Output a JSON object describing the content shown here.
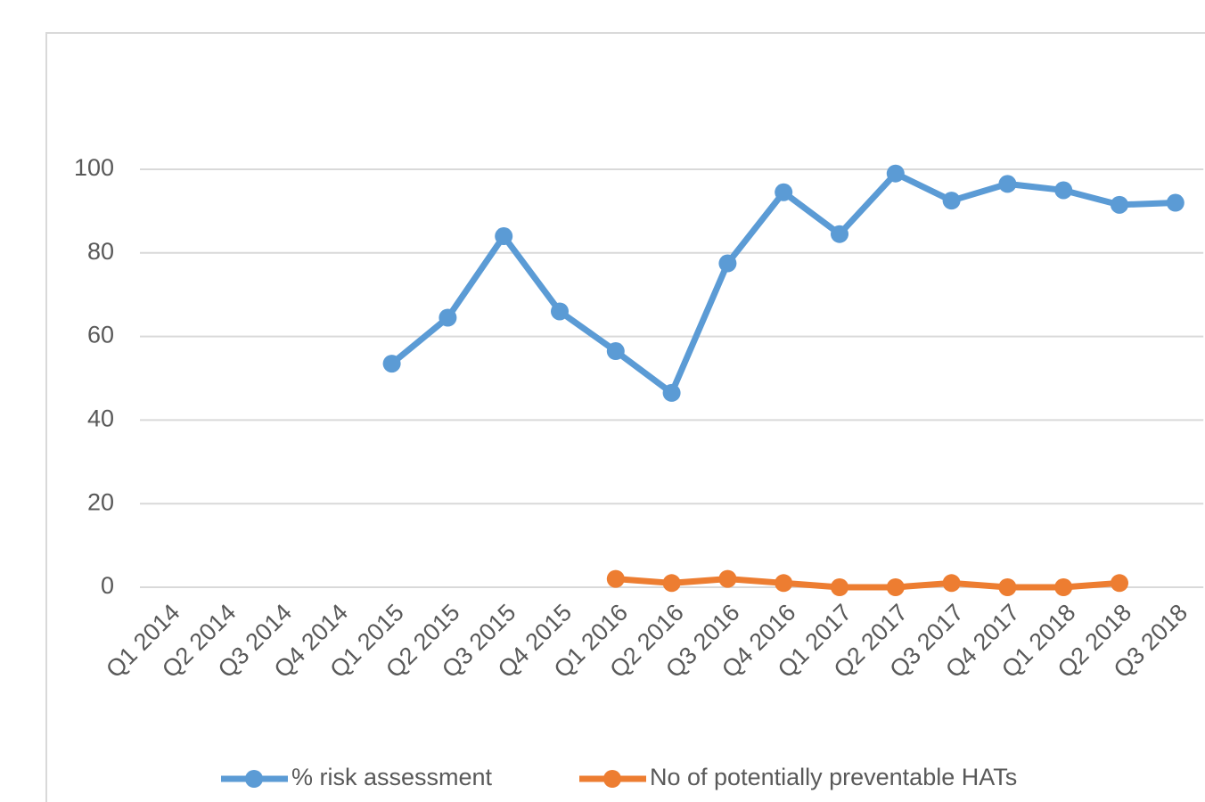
{
  "chart_data": {
    "type": "line",
    "categories": [
      "Q1 2014",
      "Q2 2014",
      "Q3 2014",
      "Q4 2014",
      "Q1 2015",
      "Q2 2015",
      "Q3 2015",
      "Q4 2015",
      "Q1 2016",
      "Q2 2016",
      "Q3 2016",
      "Q4 2016",
      "Q1 2017",
      "Q2 2017",
      "Q3 2017",
      "Q4 2017",
      "Q1 2018",
      "Q2 2018",
      "Q3 2018"
    ],
    "series": [
      {
        "name": "% risk assessment",
        "color": "#5b9bd5",
        "values": [
          null,
          null,
          null,
          null,
          53.5,
          64.5,
          84,
          66,
          56.5,
          46.5,
          77.5,
          94.5,
          84.5,
          99,
          92.5,
          96.5,
          95,
          91.5,
          92
        ]
      },
      {
        "name": "No of potentially preventable HATs",
        "color": "#ed7d31",
        "values": [
          null,
          null,
          null,
          null,
          null,
          null,
          null,
          null,
          2,
          1,
          2,
          1,
          0,
          0,
          1,
          0,
          0,
          1,
          null
        ]
      }
    ],
    "ylim": [
      0,
      100
    ],
    "yticks": [
      0,
      20,
      40,
      60,
      80,
      100
    ],
    "grid": true,
    "legend": "bottom"
  }
}
